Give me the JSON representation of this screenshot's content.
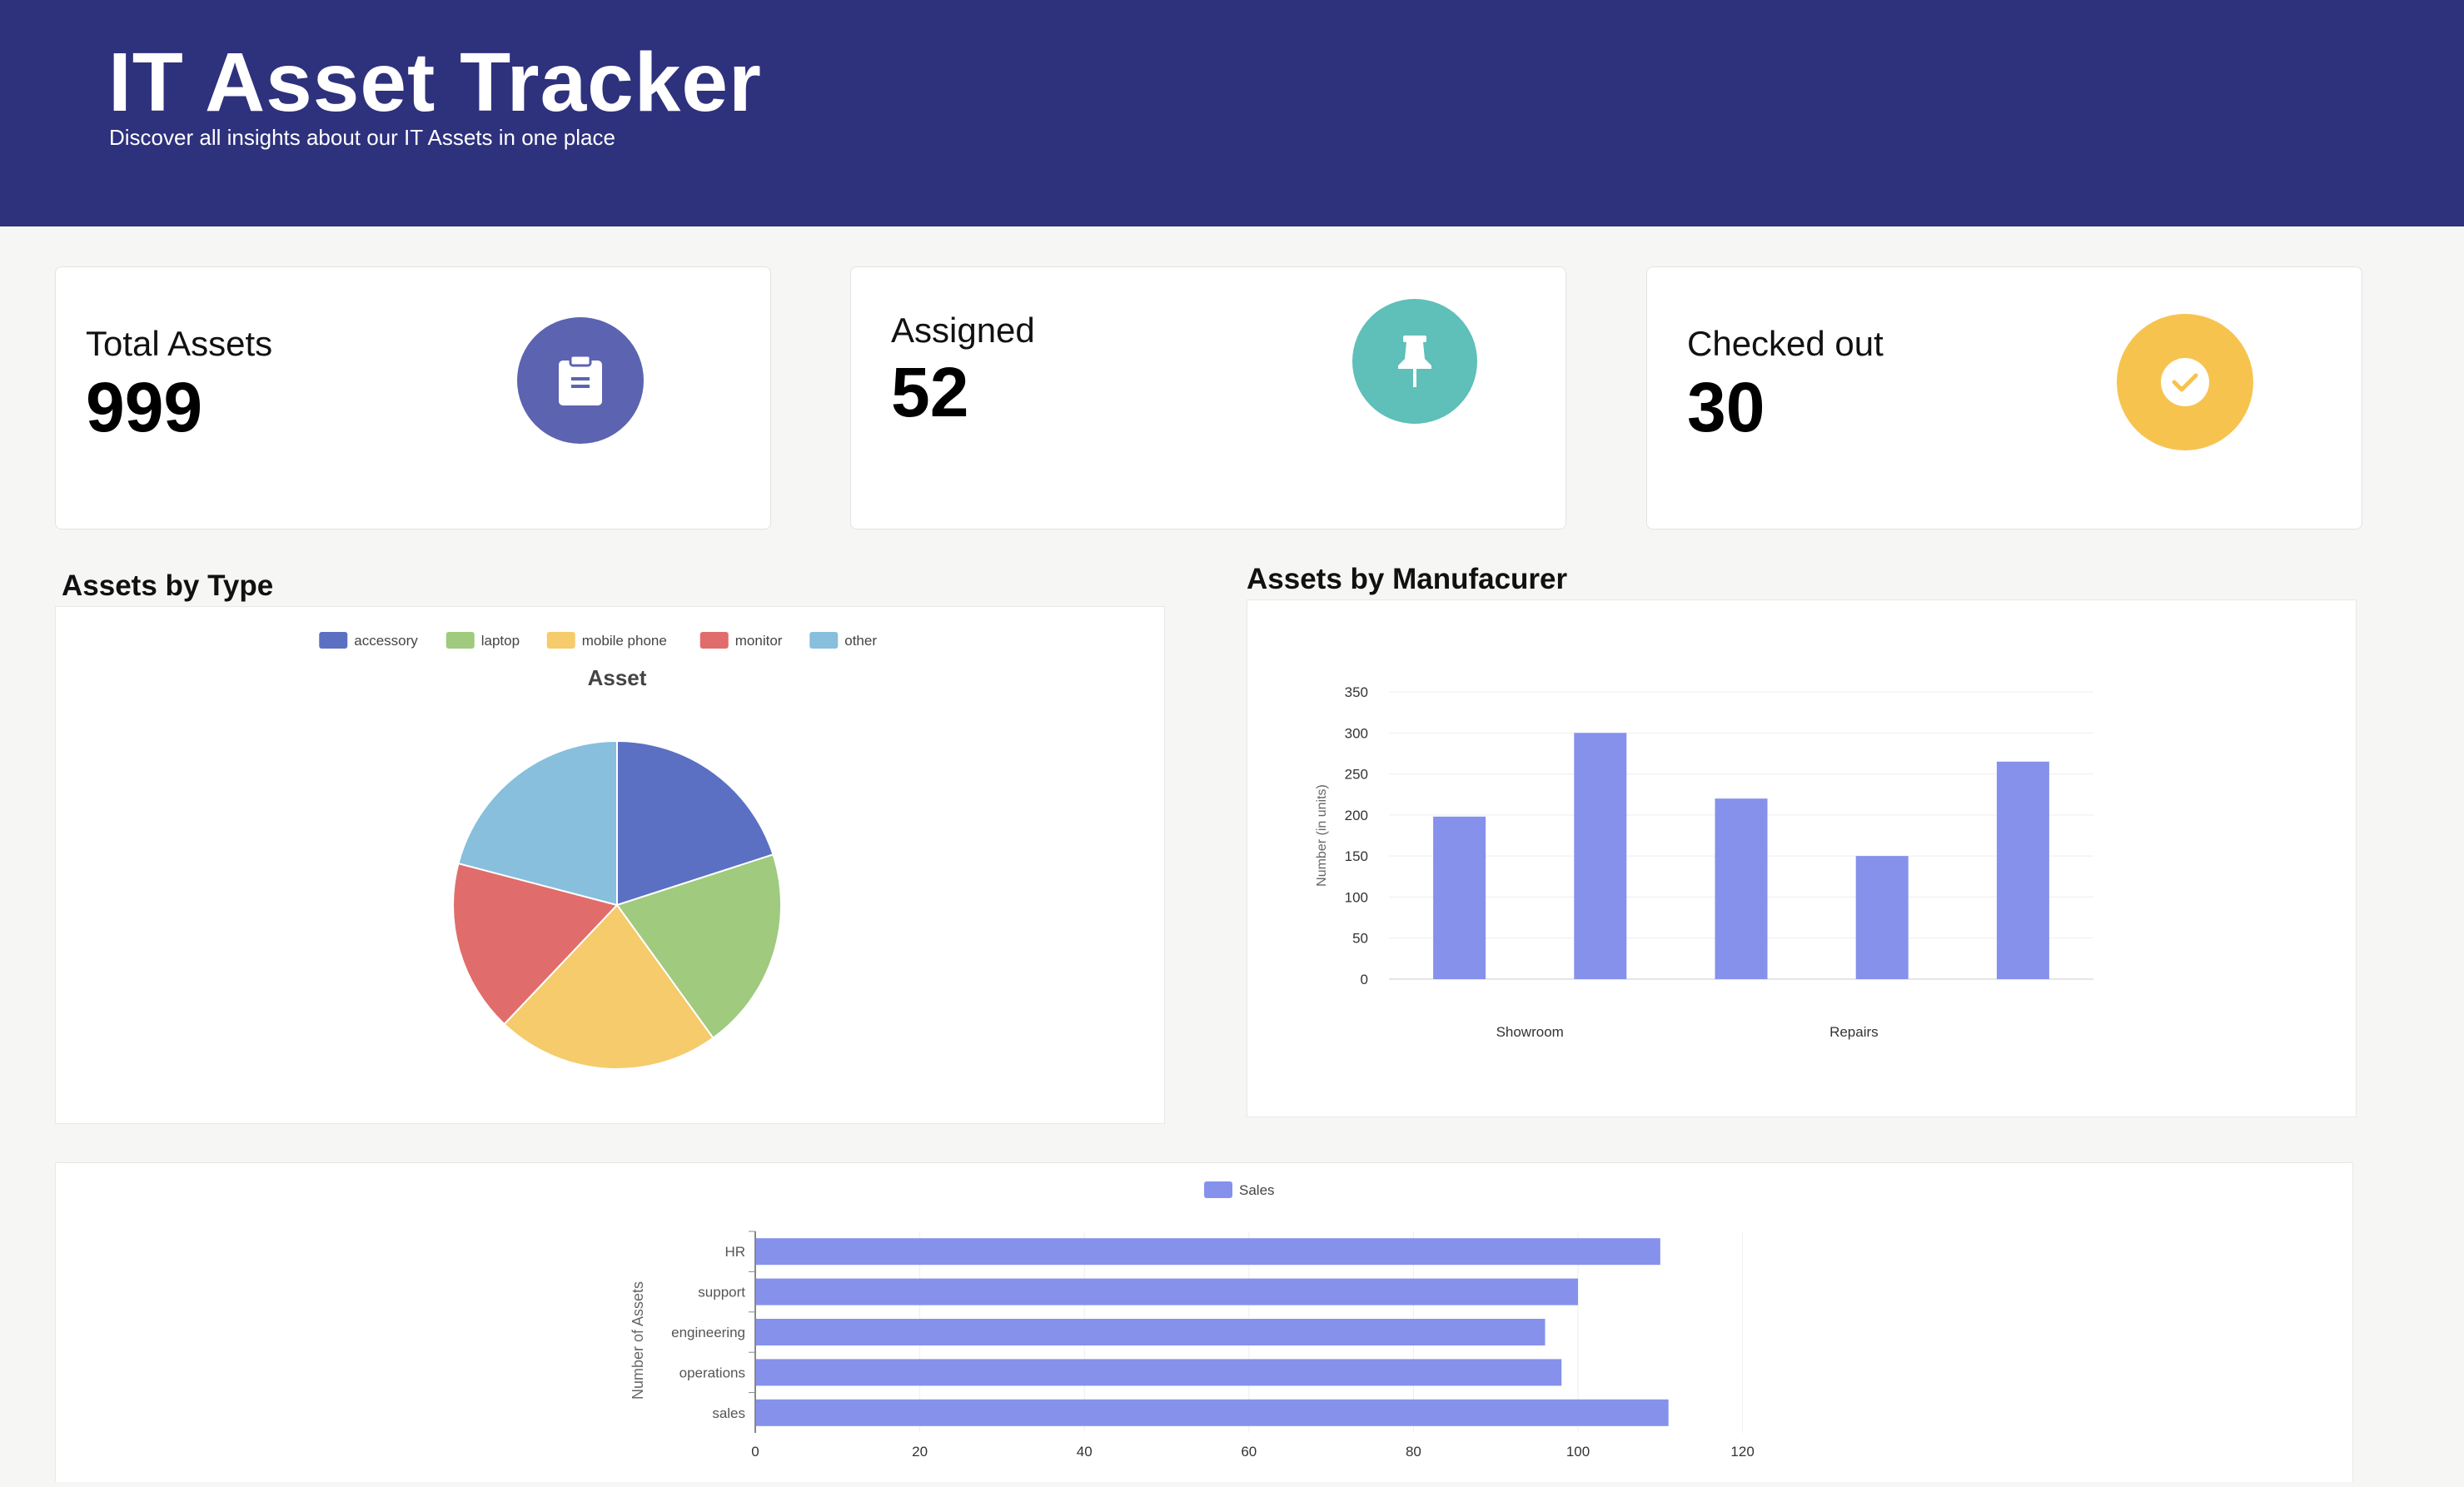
{
  "header": {
    "title": "IT Asset Tracker",
    "subtitle": "Discover all insights about our IT Assets in one place"
  },
  "stats": [
    {
      "label": "Total Assets",
      "value": "999",
      "icon": "clipboard-icon",
      "color": "#5c63b0"
    },
    {
      "label": "Assigned",
      "value": "52",
      "icon": "pushpin-icon",
      "color": "#5fbfb9"
    },
    {
      "label": "Checked out",
      "value": "30",
      "icon": "check-circle-icon",
      "color": "#f7c34f"
    }
  ],
  "sections": {
    "by_type": "Assets by Type",
    "by_manufacturer": "Assets by Manufacurer"
  },
  "chart_data": [
    {
      "type": "pie",
      "title": "Asset",
      "legend_position": "top",
      "labels": [
        "accessory",
        "laptop",
        "mobile phone",
        "monitor",
        "other"
      ],
      "values": [
        200,
        200,
        220,
        170,
        209
      ],
      "colors": [
        "#5b70c2",
        "#a0ca7e",
        "#f5cb6b",
        "#e06d6b",
        "#87bfdd"
      ]
    },
    {
      "type": "bar",
      "categories": [
        "Showroom",
        "",
        "",
        "Repairs",
        ""
      ],
      "tick_labels": [
        "Showroom",
        "Repairs"
      ],
      "values": [
        198,
        300,
        220,
        150,
        265
      ],
      "ylabel": "Number (in units)",
      "ylim": [
        0,
        350
      ],
      "yticks": [
        0,
        50,
        100,
        150,
        200,
        250,
        300,
        350
      ],
      "color": "#8591eb",
      "grid": true
    },
    {
      "type": "bar",
      "orientation": "horizontal",
      "categories": [
        "HR",
        "support",
        "engineering",
        "operations",
        "sales"
      ],
      "series": [
        {
          "name": "Sales",
          "values": [
            110,
            100,
            96,
            98,
            111
          ]
        }
      ],
      "ylabel": "Number of Assets",
      "xlim": [
        0,
        120
      ],
      "xticks": [
        0,
        20,
        40,
        60,
        80,
        100,
        120
      ],
      "legend_position": "top",
      "color": "#8591eb",
      "grid": true
    }
  ]
}
